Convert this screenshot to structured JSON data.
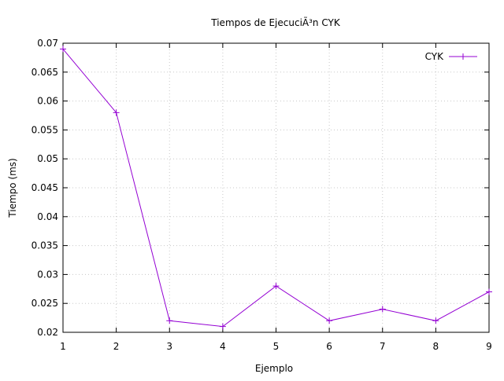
{
  "chart_data": {
    "type": "line",
    "title": "Tiempos de EjecuciÃ³n CYK",
    "xlabel": "Ejemplo",
    "ylabel": "Tiempo (ms)",
    "xlim": [
      1,
      9
    ],
    "ylim": [
      0.02,
      0.07
    ],
    "x_ticks": [
      "1",
      "2",
      "3",
      "4",
      "5",
      "6",
      "7",
      "8",
      "9"
    ],
    "y_ticks": [
      "0.02",
      "0.025",
      "0.03",
      "0.035",
      "0.04",
      "0.045",
      "0.05",
      "0.055",
      "0.06",
      "0.065",
      "0.07"
    ],
    "grid": true,
    "legend_position": "top-right",
    "series": [
      {
        "name": "CYK",
        "color": "#9400d3",
        "marker": "plus",
        "x": [
          1,
          2,
          3,
          4,
          5,
          6,
          7,
          8,
          9
        ],
        "values": [
          0.069,
          0.058,
          0.022,
          0.021,
          0.028,
          0.022,
          0.024,
          0.022,
          0.027
        ]
      }
    ]
  }
}
